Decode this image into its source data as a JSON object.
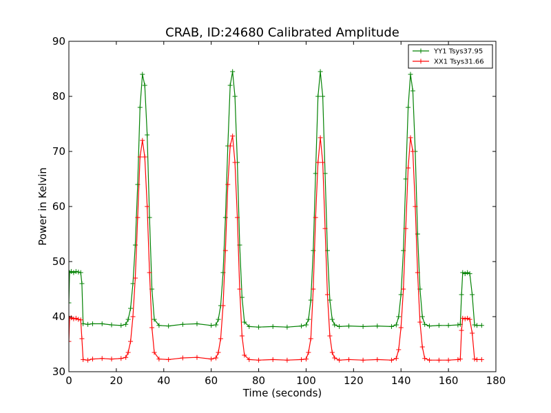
{
  "chart_data": {
    "type": "line",
    "title": "CRAB, ID:24680 Calibrated Amplitude",
    "xlabel": "Time (seconds)",
    "ylabel": "Power in Kelvin",
    "xlim": [
      0,
      180
    ],
    "ylim": [
      30,
      90
    ],
    "xticks": [
      0,
      20,
      40,
      60,
      80,
      100,
      120,
      140,
      160,
      180
    ],
    "yticks": [
      30,
      40,
      50,
      60,
      70,
      80,
      90
    ],
    "grid": false,
    "legend_position": "top-right",
    "series": [
      {
        "name": "YY1 Tsys37.95",
        "color": "#008000",
        "marker": "+",
        "x": [
          0,
          0.3,
          1,
          2,
          3,
          4,
          5,
          5.5,
          6,
          8,
          10,
          14,
          18,
          22,
          24,
          25,
          26,
          27,
          28,
          29,
          30,
          31,
          32,
          33,
          34,
          35,
          36,
          38,
          42,
          48,
          54,
          60,
          62,
          63,
          64,
          65,
          66,
          67,
          68,
          69,
          70,
          71,
          72,
          73,
          74,
          76,
          80,
          86,
          92,
          98,
          100,
          101,
          102,
          103,
          104,
          105,
          106,
          107,
          108,
          109,
          110,
          111,
          112,
          114,
          118,
          124,
          130,
          136,
          138,
          139,
          140,
          141,
          142,
          143,
          144,
          145,
          146,
          147,
          148,
          149,
          150,
          152,
          156,
          160,
          164,
          165,
          165.5,
          166,
          167,
          168,
          169,
          170,
          171,
          172,
          174
        ],
        "y": [
          42.5,
          48,
          48.2,
          48,
          48.2,
          48.1,
          48,
          46,
          38.7,
          38.6,
          38.7,
          38.7,
          38.5,
          38.4,
          38.6,
          39.5,
          41.5,
          46,
          53,
          64,
          78,
          84,
          82,
          73,
          58,
          45,
          39.5,
          38.4,
          38.3,
          38.6,
          38.7,
          38.4,
          38.5,
          39.5,
          42,
          48,
          58,
          71,
          82,
          84.5,
          80,
          68,
          53,
          43.5,
          39,
          38.2,
          38.1,
          38.2,
          38.1,
          38.3,
          38.5,
          39.5,
          43,
          52,
          66,
          80,
          84.5,
          80,
          66,
          52,
          43,
          39.5,
          38.5,
          38.2,
          38.3,
          38.2,
          38.3,
          38.2,
          38.5,
          40,
          44,
          52,
          65,
          78,
          84,
          81,
          70,
          55,
          45,
          40,
          38.6,
          38.3,
          38.4,
          38.4,
          38.5,
          38.6,
          44,
          48,
          47.8,
          48,
          47.8,
          44,
          38.5,
          38.4,
          38.4
        ]
      },
      {
        "name": "XX1 Tsys31.66",
        "color": "#ff0000",
        "marker": "+",
        "x": [
          0,
          0.3,
          1,
          2,
          3,
          4,
          5,
          5.5,
          6,
          8,
          10,
          14,
          18,
          22,
          24,
          25,
          26,
          27,
          28,
          29,
          30,
          31,
          32,
          33,
          34,
          35,
          36,
          38,
          42,
          48,
          54,
          60,
          62,
          63,
          64,
          65,
          66,
          67,
          68,
          69,
          70,
          71,
          72,
          73,
          74,
          76,
          80,
          86,
          92,
          98,
          100,
          101,
          102,
          103,
          104,
          105,
          106,
          107,
          108,
          109,
          110,
          111,
          112,
          114,
          118,
          124,
          130,
          136,
          138,
          139,
          140,
          141,
          142,
          143,
          144,
          145,
          146,
          147,
          148,
          149,
          150,
          152,
          156,
          160,
          164,
          165,
          165.5,
          166,
          167,
          168,
          169,
          170,
          171,
          172,
          174
        ],
        "y": [
          35.5,
          39.7,
          39.8,
          39.6,
          39.7,
          39.5,
          39.4,
          36,
          32.2,
          32.1,
          32.3,
          32.4,
          32.3,
          32.4,
          32.6,
          33.5,
          35.5,
          40,
          47,
          58,
          69,
          72,
          69,
          60,
          48,
          38,
          33.5,
          32.3,
          32.2,
          32.5,
          32.6,
          32.3,
          32.5,
          33.5,
          36,
          42,
          52,
          64,
          71,
          72.8,
          68,
          58,
          45,
          36.5,
          33,
          32.2,
          32.1,
          32.2,
          32.1,
          32.2,
          32.3,
          33.5,
          36,
          45,
          58,
          68,
          72.5,
          68,
          56,
          44,
          36.5,
          33.5,
          32.5,
          32.1,
          32.2,
          32.1,
          32.2,
          32.1,
          32.4,
          34,
          38,
          45,
          56,
          67,
          72.5,
          70,
          60,
          48,
          39,
          34.5,
          32.4,
          32.1,
          32.1,
          32.1,
          32.2,
          32.3,
          37.5,
          39.7,
          39.6,
          39.7,
          39.5,
          37,
          32.3,
          32.2,
          32.2
        ]
      }
    ]
  }
}
